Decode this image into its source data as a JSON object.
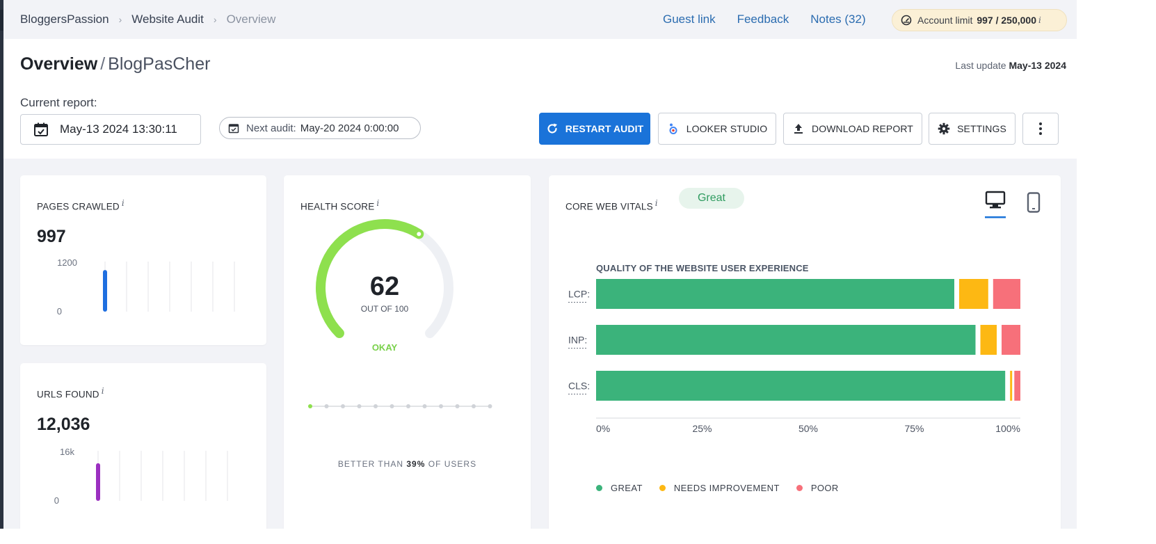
{
  "breadcrumb": [
    "BloggersPassion",
    "Website Audit",
    "Overview"
  ],
  "top_links": [
    {
      "name": "guest-link",
      "label": "Guest link"
    },
    {
      "name": "feedback-link",
      "label": "Feedback"
    },
    {
      "name": "notes-link",
      "label": "Notes (32)"
    }
  ],
  "account_limit": {
    "label": "Account limit",
    "value": "997 / 250,000",
    "info": "i"
  },
  "header": {
    "title": "Overview",
    "separator": "/",
    "project": "BlogPasCher",
    "last_update_label": "Last update",
    "last_update_value": "May-13 2024",
    "current_report_label": "Current report:",
    "current_report_date": "May-13 2024 13:30:11",
    "next_audit_label": "Next audit:",
    "next_audit_value": "May-20 2024 0:00:00"
  },
  "buttons": {
    "restart": "RESTART AUDIT",
    "looker": "LOOKER STUDIO",
    "download": "DOWNLOAD REPORT",
    "settings": "SETTINGS"
  },
  "pages_crawled": {
    "title": "PAGES CRAWLED",
    "info": "i",
    "value": "997",
    "chart": {
      "max_label": "1200",
      "min_label": "0",
      "max": 1200,
      "bars": [
        997
      ],
      "bar_color": "#1f6fe0"
    }
  },
  "urls_found": {
    "title": "URLS FOUND",
    "info": "i",
    "value": "12,036",
    "chart": {
      "max_label": "16k",
      "min_label": "0",
      "max": 16000,
      "bars": [
        12036
      ],
      "bar_color": "#9b2fc0"
    }
  },
  "health_score": {
    "title": "HEALTH SCORE",
    "info": "i",
    "score": 62,
    "score_label": "62",
    "out_of": "OUT OF 100",
    "status": "OKAY",
    "gauge_color": "#8ee04e",
    "status_color": "#79d14a",
    "better_than_prefix": "BETTER THAN",
    "better_than_value": "39%",
    "better_than_suffix": "OF USERS",
    "step_position": 0
  },
  "core_web_vitals": {
    "title": "CORE WEB VITALS",
    "info": "i",
    "badge": "Great",
    "subtitle": "QUALITY OF THE WEBSITE USER EXPERIENCE",
    "device_icons": [
      "desktop-icon",
      "mobile-icon"
    ],
    "active_device": "desktop"
  },
  "chart_data": {
    "type": "bar",
    "orientation": "horizontal",
    "stacked": true,
    "title": "QUALITY OF THE WEBSITE USER EXPERIENCE",
    "categories": [
      "LCP:",
      "INP:",
      "CLS:"
    ],
    "series": [
      {
        "name": "GREAT",
        "color": "#3bb37b",
        "values": [
          85,
          90,
          97
        ]
      },
      {
        "name": "NEEDS IMPROVEMENT",
        "color": "#fdb813",
        "values": [
          8,
          5,
          1
        ]
      },
      {
        "name": "POOR",
        "color": "#f7707a",
        "values": [
          7,
          5,
          2
        ]
      }
    ],
    "x_ticks": [
      "0%",
      "25%",
      "50%",
      "75%",
      "100%"
    ],
    "xlim": [
      0,
      100
    ],
    "legend_position": "bottom-left"
  }
}
